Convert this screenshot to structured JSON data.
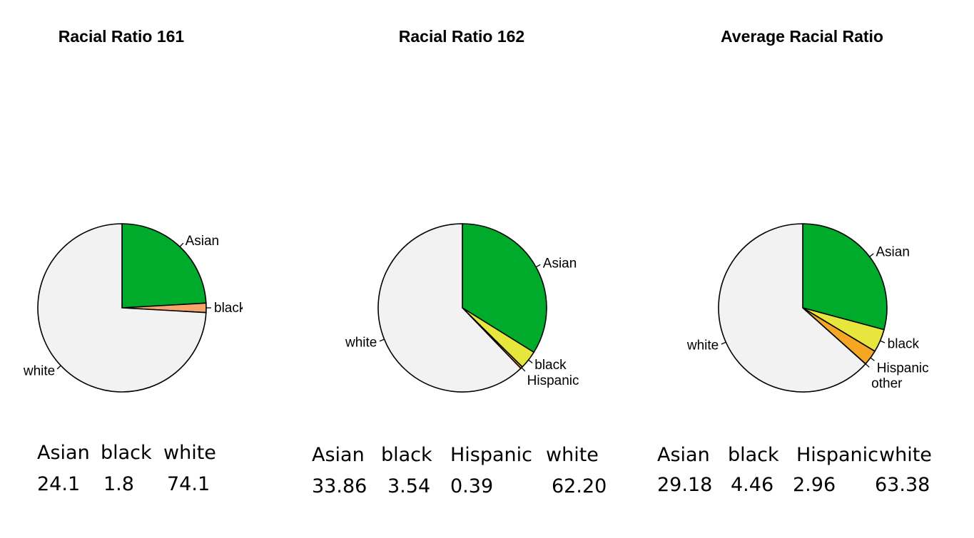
{
  "chart_data": [
    {
      "type": "pie",
      "title": "Racial Ratio 161",
      "slices": [
        {
          "label": "Asian",
          "value": 24.1,
          "color": "#00AA2B"
        },
        {
          "label": "black",
          "value": 1.8,
          "color": "#F5A46A"
        },
        {
          "label": "white",
          "value": 74.1,
          "color": "#F2F2F2"
        }
      ],
      "table": {
        "headers": [
          "Asian",
          "black",
          "white"
        ],
        "values": [
          "24.1",
          "1.8",
          "74.1"
        ]
      }
    },
    {
      "type": "pie",
      "title": "Racial Ratio 162",
      "slices": [
        {
          "label": "Asian",
          "value": 33.86,
          "color": "#00AA2B"
        },
        {
          "label": "black",
          "value": 3.54,
          "color": "#E6E63C"
        },
        {
          "label": "Hispanic",
          "value": 0.39,
          "color": "#F5A623"
        },
        {
          "label": "white",
          "value": 62.2,
          "color": "#F2F2F2"
        }
      ],
      "table": {
        "headers": [
          "Asian",
          "black",
          "Hispanic",
          "white"
        ],
        "values": [
          "33.86",
          "3.54",
          "0.39",
          "62.20"
        ]
      }
    },
    {
      "type": "pie",
      "title": "Average Racial Ratio",
      "slices": [
        {
          "label": "Asian",
          "value": 29.18,
          "color": "#00AA2B"
        },
        {
          "label": "black",
          "value": 4.46,
          "color": "#E6E63C"
        },
        {
          "label": "Hispanic",
          "value": 2.96,
          "color": "#F5A623"
        },
        {
          "label": "other",
          "value": 0.02,
          "color": "#F5A46A"
        },
        {
          "label": "white",
          "value": 63.38,
          "color": "#F2F2F2"
        }
      ],
      "table": {
        "headers": [
          "Asian",
          "black",
          "Hispanic",
          "white"
        ],
        "values": [
          "29.18",
          "4.46",
          "2.96",
          "63.38"
        ]
      }
    }
  ]
}
